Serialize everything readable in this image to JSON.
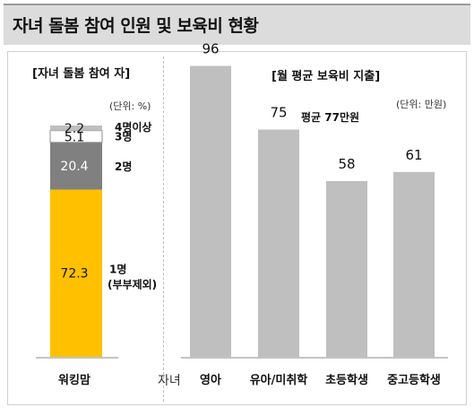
{
  "title": "자녀 돌봄 참여 인원 및 보육비 현황",
  "chart_data": [
    {
      "type": "bar",
      "stacked": true,
      "subtitle": "[자녀 돌봄 참여 자]",
      "unit": "(단위: %)",
      "categories": [
        "워킹맘"
      ],
      "series": [
        {
          "name": "1명 (부부제외)",
          "values": [
            72.3
          ],
          "color": "#ffc000"
        },
        {
          "name": "2명",
          "values": [
            20.4
          ],
          "color": "#808080"
        },
        {
          "name": "3명",
          "values": [
            5.1
          ],
          "color": "#ffffff"
        },
        {
          "name": "4명이상",
          "values": [
            2.2
          ],
          "color": "#bfbfbf"
        }
      ],
      "ylim": [
        0,
        100
      ]
    },
    {
      "type": "bar",
      "subtitle": "[월 평균 보육비 지출]",
      "unit": "(단위: 만원)",
      "annotation": "평균 77만원",
      "xlabel": "자녀",
      "categories": [
        "영아",
        "유아/미취학",
        "초등학생",
        "중고등학생"
      ],
      "values": [
        96,
        75,
        58,
        61
      ],
      "color": "#bfbfbf",
      "ylim": [
        0,
        100
      ]
    }
  ]
}
